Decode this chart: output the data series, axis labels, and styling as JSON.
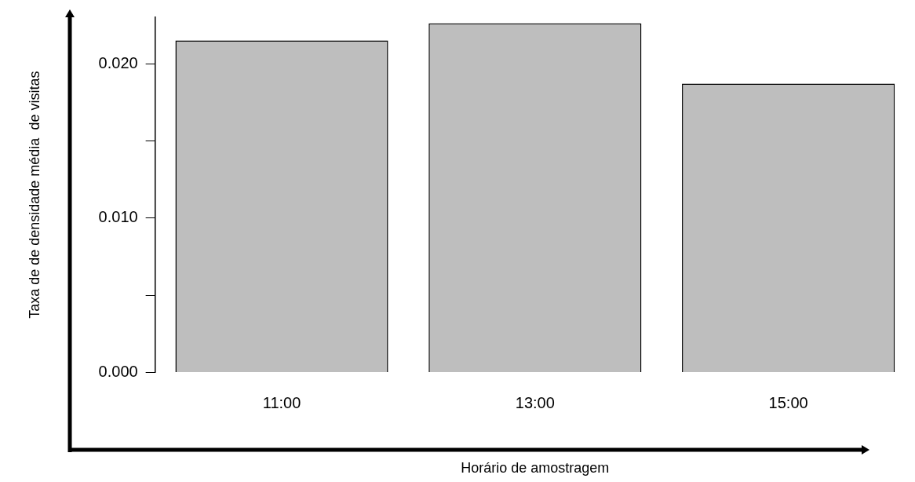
{
  "chart_data": {
    "type": "bar",
    "xlabel": "Horário de amostragem",
    "ylabel": "Taxa de de densidade média  de visitas",
    "categories": [
      "11:00",
      "13:00",
      "15:00"
    ],
    "values": [
      0.0215,
      0.0226,
      0.0187
    ],
    "color": "#bebebe",
    "ylim": [
      0,
      0.023
    ],
    "yticks": [
      {
        "value": 0,
        "label": "0.000"
      },
      {
        "value": 0.005,
        "label": null
      },
      {
        "value": 0.01,
        "label": "0.010"
      },
      {
        "value": 0.015,
        "label": null
      },
      {
        "value": 0.02,
        "label": "0.020"
      }
    ],
    "grid": false
  }
}
